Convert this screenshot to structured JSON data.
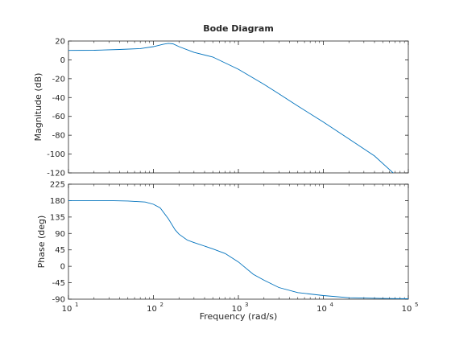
{
  "chart_data": [
    {
      "type": "line",
      "title": "Bode Diagram",
      "ylabel": "Magnitude (dB)",
      "xscale": "log",
      "xlim": [
        10,
        100000
      ],
      "ylim": [
        -120,
        20
      ],
      "yticks": [
        "20",
        "0",
        "-20",
        "-40",
        "-60",
        "-80",
        "-100",
        "-120"
      ],
      "grid": false,
      "line_color": "#0072bd",
      "series": [
        {
          "x": [
            10,
            20,
            40,
            70,
            100,
            130,
            150,
            170,
            200,
            300,
            500,
            1000,
            2000,
            3000,
            5000,
            10000,
            20000,
            40000,
            70000
          ],
          "y": [
            10,
            10.2,
            11,
            12,
            14,
            16.5,
            17.5,
            17,
            14,
            8,
            3,
            -10,
            -26,
            -36,
            -49,
            -66,
            -84,
            -102,
            -122
          ]
        }
      ]
    },
    {
      "type": "line",
      "xlabel": "Frequency  (rad/s)",
      "ylabel": "Phase (deg)",
      "xscale": "log",
      "xlim": [
        10,
        100000
      ],
      "ylim": [
        -90,
        225
      ],
      "yticks": [
        "225",
        "180",
        "135",
        "90",
        "45",
        "0",
        "-45",
        "-90"
      ],
      "xticks": [
        "10",
        "10",
        "10",
        "10",
        "10"
      ],
      "xtick_exponents": [
        "1",
        "2",
        "3",
        "4",
        "5"
      ],
      "grid": false,
      "line_color": "#0072bd",
      "series": [
        {
          "x": [
            10,
            30,
            50,
            80,
            100,
            120,
            150,
            180,
            200,
            250,
            300,
            500,
            700,
            1000,
            1500,
            2000,
            3000,
            5000,
            10000,
            20000,
            50000,
            100000
          ],
          "y": [
            180,
            180,
            179,
            176,
            170,
            160,
            130,
            100,
            88,
            72,
            65,
            48,
            35,
            12,
            -22,
            -38,
            -58,
            -72,
            -80,
            -86,
            -88,
            -89
          ]
        }
      ]
    }
  ]
}
